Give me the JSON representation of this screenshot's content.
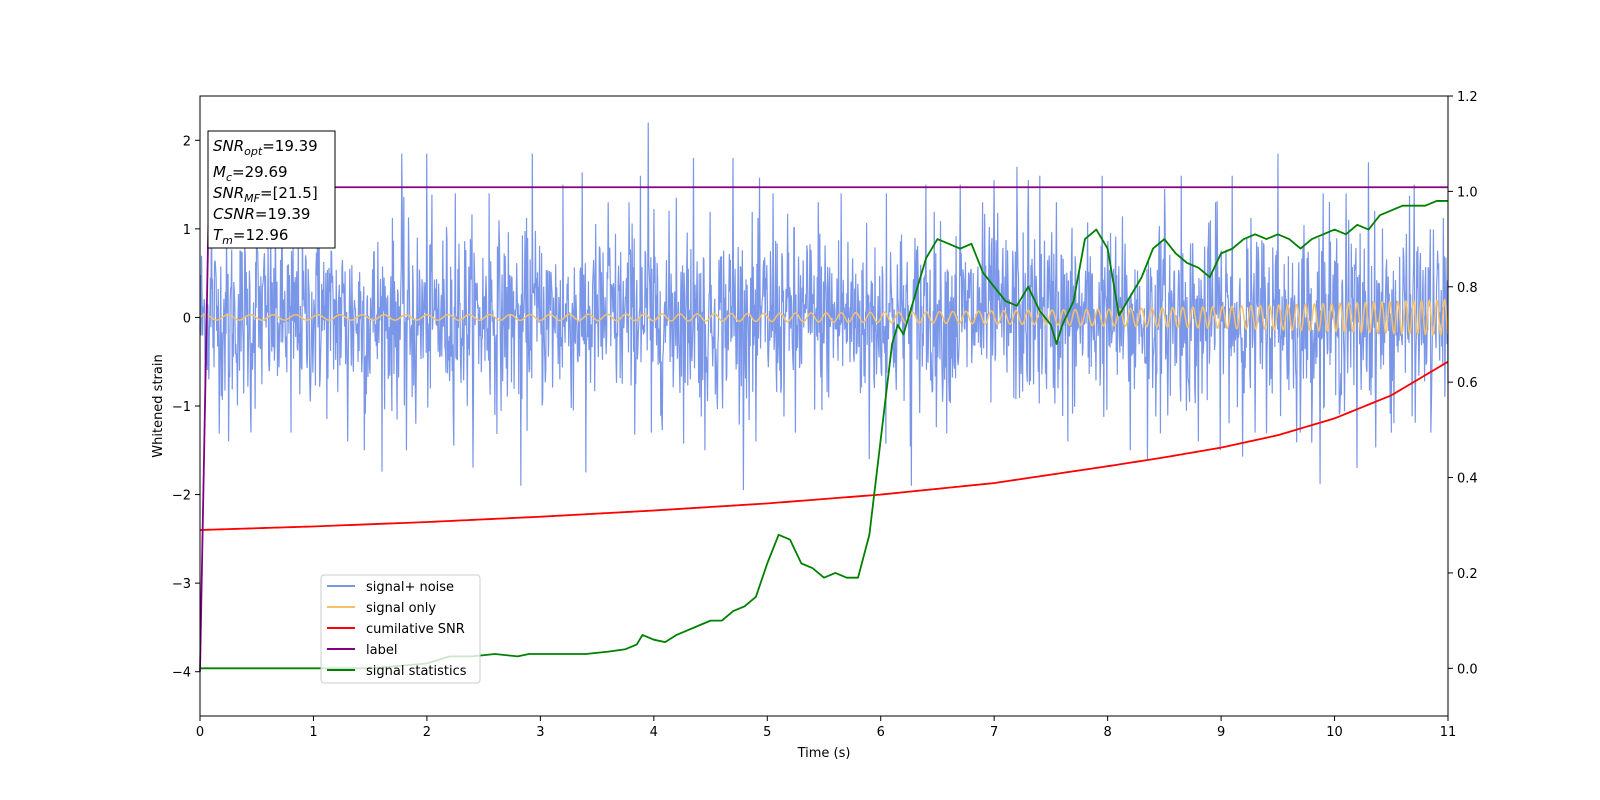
{
  "chart_data": {
    "type": "line",
    "xlabel": "Time (s)",
    "ylabel": "Whitened strain",
    "xlim": [
      0,
      11
    ],
    "ylim": [
      -4.5,
      2.5
    ],
    "y2lim": [
      -0.1,
      1.2
    ],
    "x_ticks": [
      "0",
      "1",
      "2",
      "3",
      "4",
      "5",
      "6",
      "7",
      "8",
      "9",
      "10",
      "11"
    ],
    "y_ticks": [
      "2",
      "1",
      "0",
      "−1",
      "−2",
      "−3",
      "−4"
    ],
    "y2_ticks": [
      "1.2",
      "1.0",
      "0.8",
      "0.6",
      "0.4",
      "0.2",
      "0.0"
    ],
    "grid": false,
    "legend_position": "lower-left",
    "colors": {
      "noise": "#7a96e8",
      "signal": "#f5c26b",
      "csnr": "#ff0000",
      "label": "#800080",
      "stat": "#008000"
    },
    "annotation": {
      "snr_opt": {
        "symbol": "SNR",
        "sub": "opt",
        "value": "=19.39"
      },
      "mc": {
        "symbol": "M",
        "sub": "c",
        "value": "=29.69"
      },
      "snr_mf": {
        "symbol": "SNR",
        "sub": "MF",
        "value": "=[21.5]"
      },
      "csnr": {
        "symbol": "CSNR",
        "value": "=19.39"
      },
      "tm": {
        "symbol": "T",
        "sub": "m",
        "value": "=12.96"
      }
    },
    "series": [
      {
        "name": "signal+ noise",
        "axis": "left",
        "style": "noise",
        "amplitude": 0.5,
        "spikes": [
          [
            0.1,
            1.3
          ],
          [
            0.25,
            -1.4
          ],
          [
            0.45,
            -1.3
          ],
          [
            0.5,
            1.2
          ],
          [
            0.8,
            -1.3
          ],
          [
            1.05,
            1.5
          ],
          [
            1.3,
            -1.4
          ],
          [
            1.45,
            -1.5
          ],
          [
            1.78,
            1.85
          ],
          [
            1.82,
            -1.5
          ],
          [
            1.9,
            -1.2
          ],
          [
            2.0,
            1.85
          ],
          [
            2.25,
            1.4
          ],
          [
            2.55,
            1.4
          ],
          [
            2.83,
            -1.9
          ],
          [
            2.93,
            1.85
          ],
          [
            3.2,
            1.5
          ],
          [
            3.4,
            -1.75
          ],
          [
            3.6,
            1.3
          ],
          [
            3.78,
            1.3
          ],
          [
            3.88,
            1.6
          ],
          [
            3.95,
            2.2
          ],
          [
            3.98,
            -1.3
          ],
          [
            4.2,
            1.35
          ],
          [
            4.35,
            1.8
          ],
          [
            4.45,
            -1.5
          ],
          [
            4.7,
            1.8
          ],
          [
            4.9,
            -1.4
          ],
          [
            5.05,
            1.4
          ],
          [
            5.25,
            -1.3
          ],
          [
            5.45,
            1.3
          ],
          [
            5.65,
            1.4
          ],
          [
            5.9,
            -1.6
          ],
          [
            6.05,
            1.4
          ],
          [
            6.27,
            -1.9
          ],
          [
            6.4,
            1.5
          ],
          [
            6.7,
            1.5
          ],
          [
            6.9,
            1.3
          ],
          [
            7.0,
            1.55
          ],
          [
            7.2,
            1.7
          ],
          [
            7.3,
            1.55
          ],
          [
            7.4,
            1.6
          ],
          [
            7.55,
            1.3
          ],
          [
            7.65,
            -1.4
          ],
          [
            7.95,
            1.6
          ],
          [
            8.2,
            -1.5
          ],
          [
            8.35,
            -1.6
          ],
          [
            8.5,
            1.45
          ],
          [
            8.65,
            1.6
          ],
          [
            8.8,
            -1.4
          ],
          [
            8.95,
            1.3
          ],
          [
            9.1,
            1.6
          ],
          [
            9.3,
            -1.3
          ],
          [
            9.5,
            1.85
          ],
          [
            9.7,
            -1.3
          ],
          [
            9.9,
            1.4
          ],
          [
            10.1,
            1.4
          ],
          [
            10.2,
            -1.7
          ],
          [
            10.3,
            1.75
          ],
          [
            10.5,
            -1.3
          ],
          [
            10.7,
            1.5
          ],
          [
            10.85,
            -1.3
          ]
        ]
      },
      {
        "name": "signal only",
        "axis": "left",
        "style": "signal",
        "amplitude_start": 0.03,
        "amplitude_end": 0.2,
        "cycles_per_s_start": 5,
        "cycles_per_s_end": 15
      },
      {
        "name": "cumilative SNR",
        "axis": "left",
        "style": "csnr",
        "x": [
          0,
          1,
          2,
          3,
          4,
          5,
          6,
          7,
          8,
          8.5,
          9,
          9.5,
          10,
          10.5,
          11
        ],
        "y": [
          -2.4,
          -2.36,
          -2.31,
          -2.25,
          -2.18,
          -2.1,
          -2.0,
          -1.87,
          -1.68,
          -1.58,
          -1.47,
          -1.33,
          -1.14,
          -0.88,
          -0.5
        ]
      },
      {
        "name": "label",
        "axis": "left",
        "style": "label",
        "x": [
          0,
          0.08,
          11
        ],
        "y": [
          -4.0,
          1.47,
          1.47
        ]
      },
      {
        "name": "signal statistics",
        "axis": "right",
        "style": "stat",
        "x": [
          0,
          0.3,
          1.0,
          1.5,
          2.0,
          2.2,
          2.4,
          2.6,
          2.8,
          2.9,
          3.0,
          3.2,
          3.4,
          3.6,
          3.75,
          3.8,
          3.85,
          3.9,
          4.0,
          4.1,
          4.2,
          4.3,
          4.4,
          4.5,
          4.6,
          4.7,
          4.8,
          4.9,
          5.0,
          5.1,
          5.2,
          5.3,
          5.4,
          5.5,
          5.6,
          5.7,
          5.8,
          5.9,
          6.0,
          6.05,
          6.1,
          6.15,
          6.2,
          6.3,
          6.4,
          6.5,
          6.6,
          6.7,
          6.8,
          6.9,
          7.0,
          7.1,
          7.2,
          7.3,
          7.4,
          7.5,
          7.55,
          7.6,
          7.7,
          7.8,
          7.9,
          8.0,
          8.1,
          8.2,
          8.3,
          8.4,
          8.5,
          8.6,
          8.7,
          8.8,
          8.9,
          9.0,
          9.1,
          9.2,
          9.3,
          9.4,
          9.5,
          9.6,
          9.7,
          9.8,
          9.9,
          10.0,
          10.1,
          10.2,
          10.3,
          10.4,
          10.5,
          10.6,
          10.7,
          10.8,
          10.9,
          11.0
        ],
        "y": [
          0.0,
          0.0,
          0.0,
          0.0,
          0.01,
          0.025,
          0.025,
          0.03,
          0.025,
          0.03,
          0.03,
          0.03,
          0.03,
          0.035,
          0.04,
          0.045,
          0.05,
          0.07,
          0.06,
          0.055,
          0.07,
          0.08,
          0.09,
          0.1,
          0.1,
          0.12,
          0.13,
          0.15,
          0.22,
          0.28,
          0.27,
          0.22,
          0.21,
          0.19,
          0.2,
          0.19,
          0.19,
          0.28,
          0.48,
          0.58,
          0.68,
          0.72,
          0.7,
          0.78,
          0.86,
          0.9,
          0.89,
          0.88,
          0.89,
          0.83,
          0.8,
          0.77,
          0.76,
          0.8,
          0.75,
          0.72,
          0.68,
          0.72,
          0.77,
          0.9,
          0.92,
          0.88,
          0.74,
          0.78,
          0.82,
          0.88,
          0.9,
          0.87,
          0.85,
          0.84,
          0.82,
          0.87,
          0.88,
          0.9,
          0.91,
          0.9,
          0.91,
          0.9,
          0.88,
          0.9,
          0.91,
          0.92,
          0.91,
          0.93,
          0.92,
          0.95,
          0.96,
          0.97,
          0.97,
          0.97,
          0.98,
          0.98
        ]
      }
    ]
  }
}
